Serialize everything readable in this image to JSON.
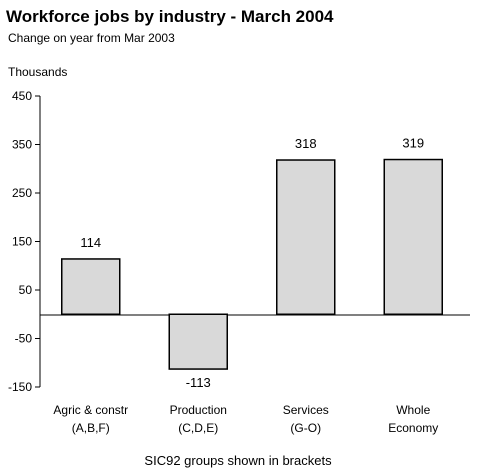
{
  "chart_data": {
    "type": "bar",
    "title": "Workforce jobs by industry - March 2004",
    "subtitle": "Change on year from Mar 2003",
    "ylabel": "Thousands",
    "xlabel": "",
    "footnote": "SIC92 groups shown in brackets",
    "categories": [
      [
        "Agric & constr",
        "(A,B,F)"
      ],
      [
        "Production",
        "(C,D,E)"
      ],
      [
        "Services",
        "(G-O)"
      ],
      [
        "Whole",
        "Economy"
      ]
    ],
    "values": [
      114,
      -113,
      318,
      319
    ],
    "value_labels": [
      "114",
      "-113",
      "318",
      "319"
    ],
    "ylim": [
      -150,
      450
    ],
    "yticks": [
      450,
      350,
      250,
      150,
      50,
      -50,
      -150
    ],
    "grid": false,
    "legend": "none",
    "bar_fill": "#d9d9d9",
    "bar_stroke": "#000000"
  }
}
